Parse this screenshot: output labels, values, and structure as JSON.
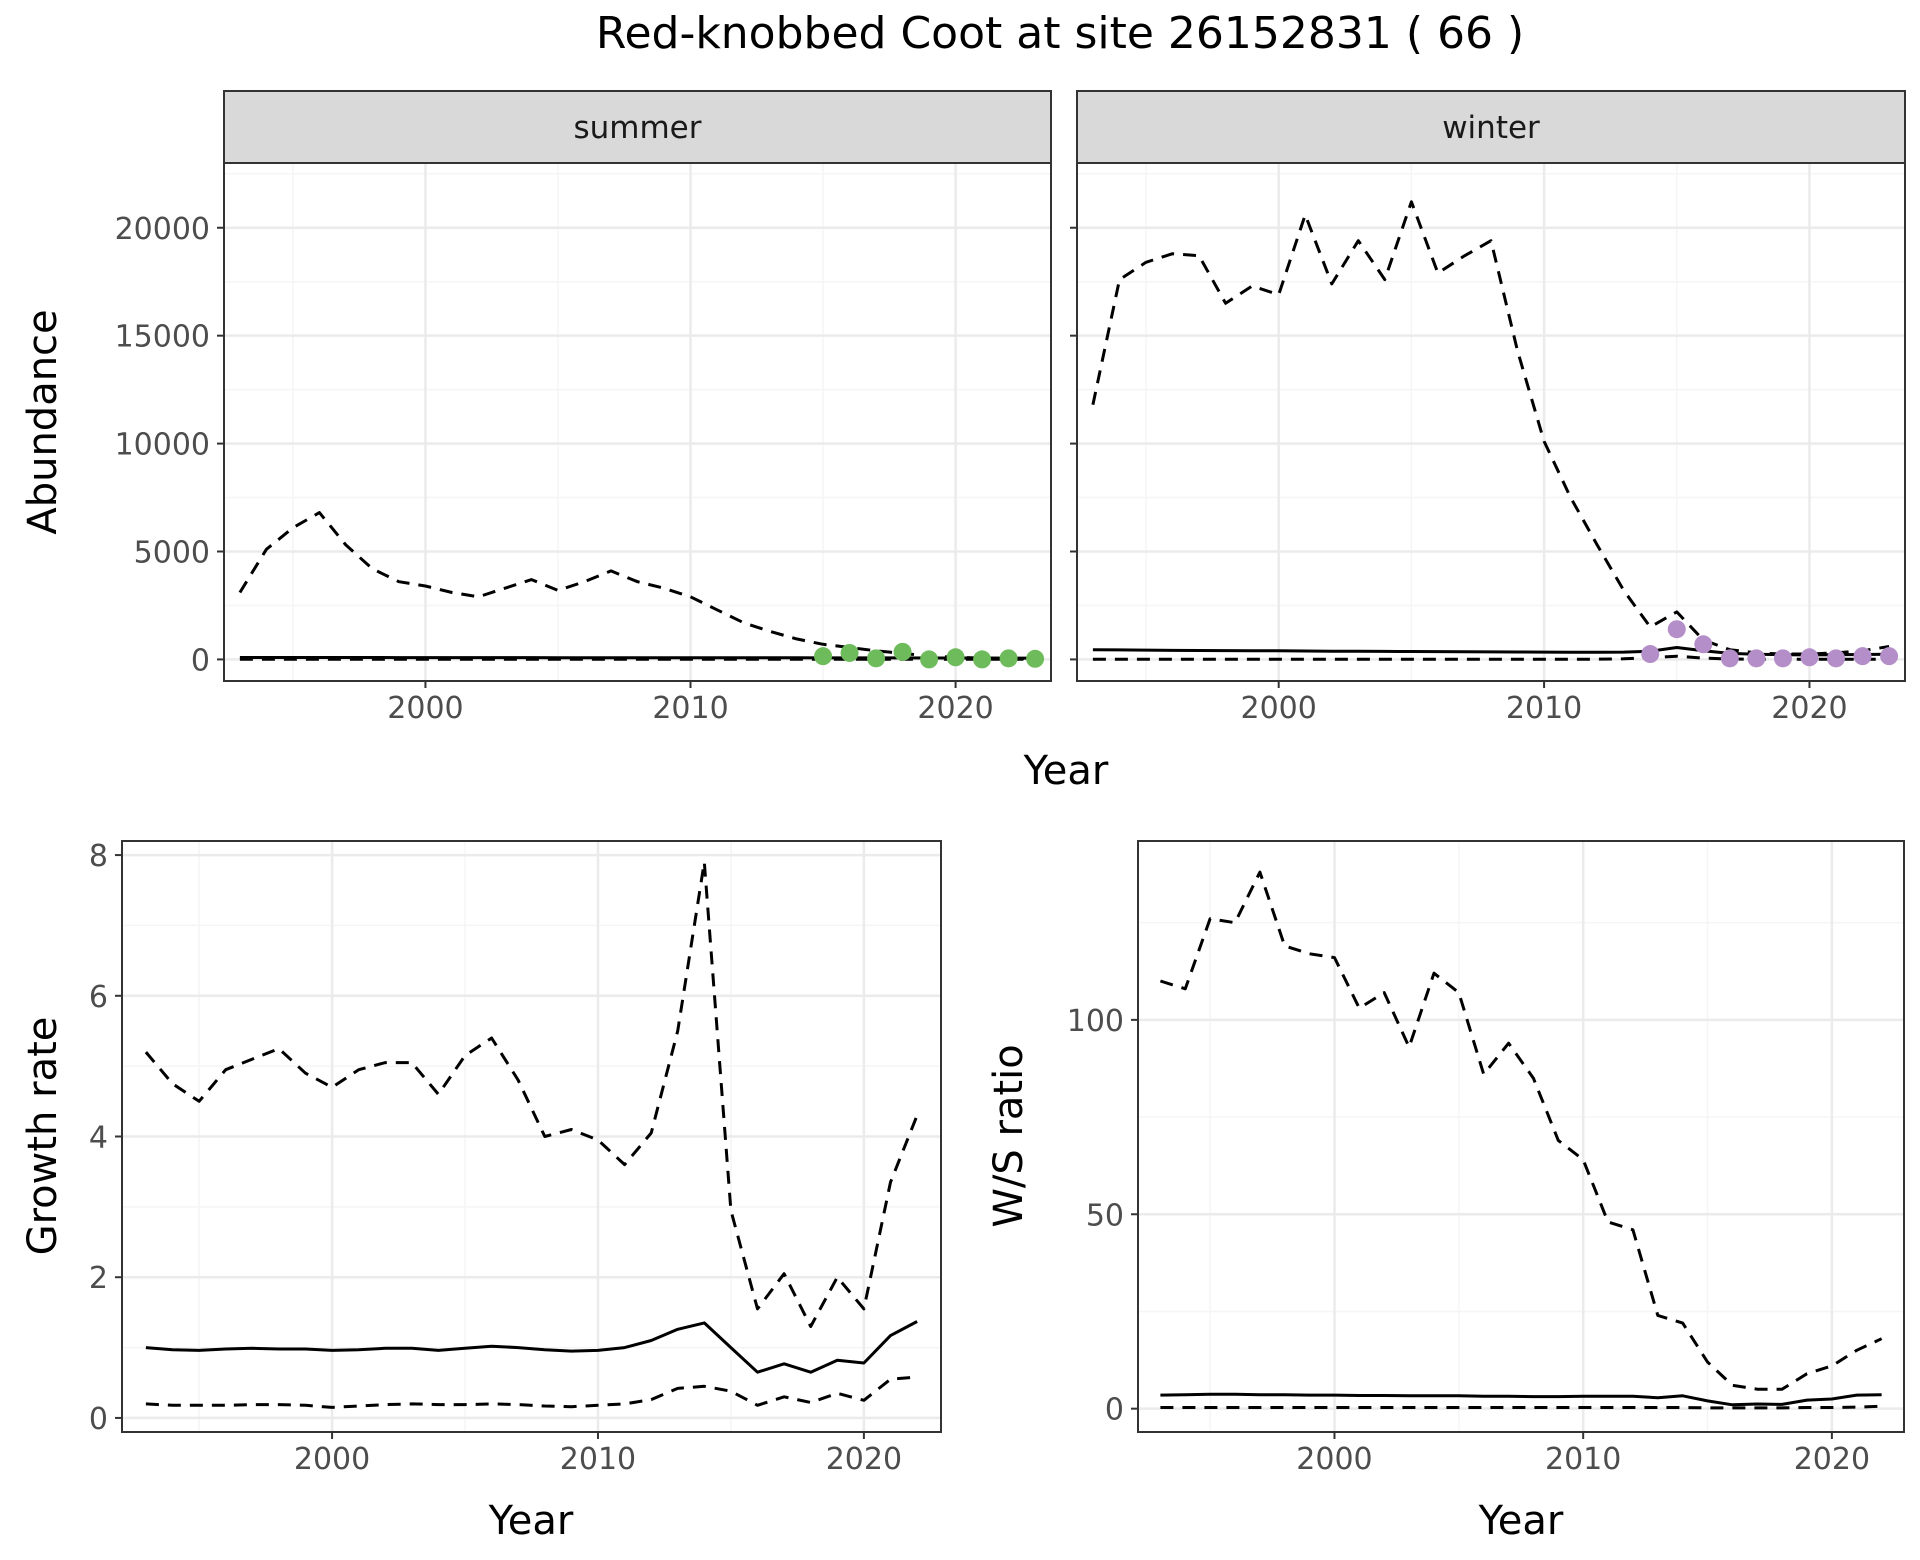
{
  "figure_title": "Red-knobbed Coot at site 26152831 ( 66 )",
  "colors": {
    "summer_points": "#6dbb5a",
    "winter_points": "#b48ec8",
    "line": "#000000",
    "strip_fill": "#d9d9d9",
    "grid_major": "#ebebeb",
    "grid_minor": "#f5f5f5"
  },
  "chart_data": [
    {
      "id": "abundance",
      "type": "line",
      "ylabel": "Abundance",
      "xlabel": "Year",
      "facets": [
        "summer",
        "winter"
      ],
      "xlim": [
        1992.4,
        2023.6
      ],
      "ylim": [
        -1000,
        23000
      ],
      "x_ticks": [
        2000,
        2010,
        2020
      ],
      "x_tick_labels": [
        "2000",
        "2010",
        "2020"
      ],
      "y_ticks": [
        0,
        5000,
        10000,
        15000,
        20000
      ],
      "y_tick_labels": [
        "0",
        "5000",
        "10000",
        "15000",
        "20000"
      ],
      "panels": [
        {
          "facet": "summer",
          "x": [
            1993,
            1994,
            1995,
            1996,
            1997,
            1998,
            1999,
            2000,
            2001,
            2002,
            2003,
            2004,
            2005,
            2006,
            2007,
            2008,
            2009,
            2010,
            2011,
            2012,
            2013,
            2014,
            2015,
            2016,
            2017,
            2018,
            2019,
            2020,
            2021,
            2022,
            2023
          ],
          "series": [
            {
              "name": "estimate",
              "style": "solid",
              "values": [
                90,
                90,
                88,
                88,
                87,
                87,
                86,
                85,
                84,
                83,
                82,
                82,
                81,
                80,
                79,
                78,
                77,
                76,
                75,
                74,
                74,
                73,
                72,
                70,
                69,
                68,
                67,
                66,
                64,
                63,
                62
              ]
            },
            {
              "name": "upper",
              "style": "dashed",
              "values": [
                3100,
                5100,
                6100,
                6800,
                5300,
                4200,
                3600,
                3400,
                3100,
                2900,
                3300,
                3700,
                3200,
                3600,
                4100,
                3600,
                3300,
                2900,
                2300,
                1700,
                1300,
                950,
                700,
                550,
                400,
                280,
                160,
                100,
                60,
                30,
                20
              ]
            },
            {
              "name": "lower",
              "style": "dashed",
              "values": [
                5,
                5,
                5,
                5,
                5,
                5,
                5,
                5,
                5,
                5,
                5,
                5,
                5,
                5,
                5,
                5,
                5,
                5,
                5,
                5,
                5,
                5,
                5,
                5,
                5,
                5,
                5,
                5,
                5,
                5,
                5
              ]
            }
          ],
          "points": {
            "x": [
              2015,
              2016,
              2017,
              2018,
              2019,
              2020,
              2021,
              2022,
              2023
            ],
            "y": [
              150,
              300,
              50,
              350,
              0,
              100,
              0,
              50,
              30
            ]
          }
        },
        {
          "facet": "winter",
          "x": [
            1993,
            1994,
            1995,
            1996,
            1997,
            1998,
            1999,
            2000,
            2001,
            2002,
            2003,
            2004,
            2005,
            2006,
            2007,
            2008,
            2009,
            2010,
            2011,
            2012,
            2013,
            2014,
            2015,
            2016,
            2017,
            2018,
            2019,
            2020,
            2021,
            2022,
            2023
          ],
          "series": [
            {
              "name": "estimate",
              "style": "solid",
              "values": [
                450,
                440,
                430,
                420,
                415,
                410,
                405,
                400,
                390,
                380,
                375,
                370,
                365,
                360,
                355,
                350,
                345,
                340,
                335,
                330,
                340,
                380,
                550,
                400,
                280,
                240,
                220,
                210,
                220,
                230,
                240
              ]
            },
            {
              "name": "upper",
              "style": "dashed",
              "values": [
                11800,
                17600,
                18400,
                18800,
                18700,
                16500,
                17300,
                16900,
                20600,
                17400,
                19400,
                17600,
                21200,
                17900,
                18700,
                19400,
                14300,
                10100,
                7500,
                5300,
                3200,
                1500,
                2200,
                900,
                450,
                300,
                250,
                250,
                300,
                400,
                600
              ]
            },
            {
              "name": "lower",
              "style": "dashed",
              "values": [
                10,
                10,
                10,
                10,
                10,
                10,
                10,
                10,
                10,
                10,
                10,
                10,
                10,
                10,
                10,
                10,
                10,
                10,
                10,
                10,
                30,
                80,
                150,
                60,
                20,
                10,
                10,
                10,
                10,
                10,
                10
              ]
            }
          ],
          "points": {
            "x": [
              2014,
              2015,
              2016,
              2017,
              2018,
              2019,
              2020,
              2021,
              2022,
              2023
            ],
            "y": [
              250,
              1400,
              700,
              50,
              50,
              50,
              100,
              50,
              150,
              150
            ]
          }
        }
      ]
    },
    {
      "id": "growth",
      "type": "line",
      "ylabel": "Growth rate",
      "xlabel": "Year",
      "xlim": [
        1992.1,
        2022.9
      ],
      "ylim": [
        -0.2,
        8.2
      ],
      "x_ticks": [
        2000,
        2010,
        2020
      ],
      "x_tick_labels": [
        "2000",
        "2010",
        "2020"
      ],
      "y_ticks": [
        0,
        2,
        4,
        6,
        8
      ],
      "y_tick_labels": [
        "0",
        "2",
        "4",
        "6",
        "8"
      ],
      "x": [
        1993,
        1994,
        1995,
        1996,
        1997,
        1998,
        1999,
        2000,
        2001,
        2002,
        2003,
        2004,
        2005,
        2006,
        2007,
        2008,
        2009,
        2010,
        2011,
        2012,
        2013,
        2014,
        2015,
        2016,
        2017,
        2018,
        2019,
        2020,
        2021,
        2022
      ],
      "series": [
        {
          "name": "estimate",
          "style": "solid",
          "values": [
            1.0,
            0.97,
            0.96,
            0.98,
            0.99,
            0.98,
            0.98,
            0.96,
            0.97,
            0.99,
            0.99,
            0.96,
            0.99,
            1.02,
            1.0,
            0.97,
            0.95,
            0.96,
            1.0,
            1.1,
            1.26,
            1.35,
            1.0,
            0.65,
            0.77,
            0.65,
            0.82,
            0.78,
            1.17,
            1.37
          ]
        },
        {
          "name": "upper",
          "style": "dashed",
          "values": [
            5.2,
            4.75,
            4.5,
            4.95,
            5.1,
            5.25,
            4.9,
            4.7,
            4.95,
            5.05,
            5.05,
            4.6,
            5.15,
            5.4,
            4.8,
            4.0,
            4.1,
            3.95,
            3.6,
            4.05,
            5.5,
            7.9,
            2.95,
            1.55,
            2.05,
            1.3,
            2.0,
            1.55,
            3.35,
            4.3
          ]
        },
        {
          "name": "lower",
          "style": "dashed",
          "values": [
            0.2,
            0.18,
            0.18,
            0.18,
            0.19,
            0.19,
            0.18,
            0.15,
            0.17,
            0.19,
            0.2,
            0.19,
            0.19,
            0.2,
            0.19,
            0.17,
            0.16,
            0.18,
            0.2,
            0.26,
            0.42,
            0.45,
            0.38,
            0.18,
            0.3,
            0.22,
            0.35,
            0.25,
            0.55,
            0.58
          ]
        }
      ]
    },
    {
      "id": "ws_ratio",
      "type": "line",
      "ylabel": "W/S ratio",
      "xlabel": "Year",
      "xlim": [
        1992.1,
        2022.9
      ],
      "ylim": [
        -6,
        146
      ],
      "x_ticks": [
        2000,
        2010,
        2020
      ],
      "x_tick_labels": [
        "2000",
        "2010",
        "2020"
      ],
      "y_ticks": [
        0,
        50,
        100
      ],
      "y_tick_labels": [
        "0",
        "50",
        "100"
      ],
      "x": [
        1993,
        1994,
        1995,
        1996,
        1997,
        1998,
        1999,
        2000,
        2001,
        2002,
        2003,
        2004,
        2005,
        2006,
        2007,
        2008,
        2009,
        2010,
        2011,
        2012,
        2013,
        2014,
        2015,
        2016,
        2017,
        2018,
        2019,
        2020,
        2021,
        2022
      ],
      "series": [
        {
          "name": "estimate",
          "style": "solid",
          "values": [
            3.5,
            3.6,
            3.7,
            3.7,
            3.6,
            3.6,
            3.5,
            3.5,
            3.4,
            3.4,
            3.3,
            3.3,
            3.3,
            3.2,
            3.2,
            3.1,
            3.1,
            3.2,
            3.2,
            3.2,
            2.8,
            3.3,
            2.0,
            1.0,
            1.2,
            1.1,
            2.2,
            2.5,
            3.5,
            3.6
          ]
        },
        {
          "name": "upper",
          "style": "dashed",
          "values": [
            110,
            108,
            126,
            125,
            138,
            119,
            117,
            116,
            103,
            107,
            93,
            112,
            107,
            86,
            94,
            85,
            69,
            64,
            48,
            46,
            24,
            22,
            12,
            6,
            5,
            5,
            9,
            11,
            15,
            18
          ]
        },
        {
          "name": "lower",
          "style": "dashed",
          "values": [
            0.3,
            0.3,
            0.3,
            0.3,
            0.3,
            0.3,
            0.3,
            0.3,
            0.3,
            0.3,
            0.3,
            0.3,
            0.3,
            0.3,
            0.3,
            0.3,
            0.3,
            0.3,
            0.3,
            0.3,
            0.3,
            0.3,
            0.2,
            0.2,
            0.2,
            0.2,
            0.3,
            0.3,
            0.4,
            0.6
          ]
        }
      ]
    }
  ]
}
